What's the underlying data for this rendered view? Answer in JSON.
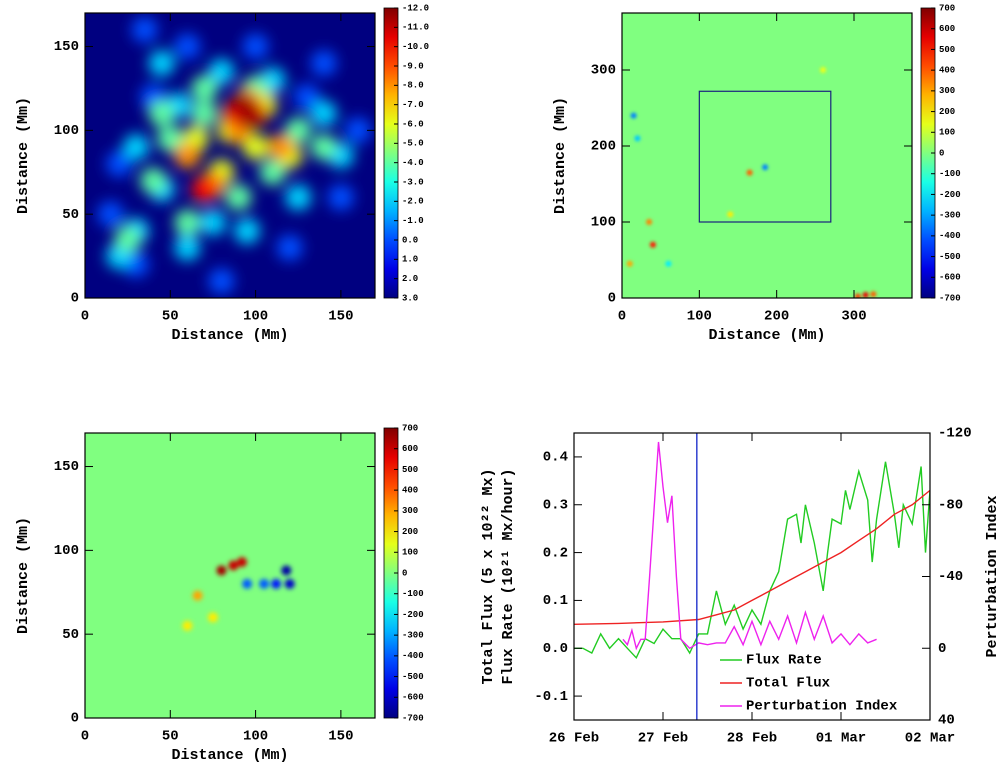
{
  "chart_data": [
    {
      "type": "heatmap",
      "xlabel": "Distance (Mm)",
      "ylabel": "Distance (Mm)",
      "xlim": [
        0,
        170
      ],
      "ylim": [
        0,
        170
      ],
      "xticks": [
        0,
        50,
        100,
        150
      ],
      "yticks": [
        0,
        50,
        100,
        150
      ],
      "colorbar": {
        "lim": [
          3,
          -12
        ],
        "ticks": [
          {
            "value": -12,
            "label": "-12.0"
          },
          {
            "value": -11,
            "label": "-11.0"
          },
          {
            "value": -10,
            "label": "-10.0"
          },
          {
            "value": -9,
            "label": "-9.0"
          },
          {
            "value": -8,
            "label": "-8.0"
          },
          {
            "value": -7,
            "label": "-7.0"
          },
          {
            "value": -6,
            "label": "-6.0"
          },
          {
            "value": -5,
            "label": "-5.0"
          },
          {
            "value": -4,
            "label": "-4.0"
          },
          {
            "value": -3,
            "label": "-3.0"
          },
          {
            "value": -2,
            "label": "-2.0"
          },
          {
            "value": -1,
            "label": "-1.0"
          },
          {
            "value": 0,
            "label": "0.0"
          },
          {
            "value": 1,
            "label": "1.0"
          },
          {
            "value": 2,
            "label": "2.0"
          },
          {
            "value": 3,
            "label": "3.0"
          }
        ]
      },
      "background": 3,
      "spots": [
        {
          "x": 30,
          "y": 20,
          "value": 0
        },
        {
          "x": 15,
          "y": 50,
          "value": 0
        },
        {
          "x": 40,
          "y": 120,
          "value": 0
        },
        {
          "x": 60,
          "y": 150,
          "value": 0
        },
        {
          "x": 100,
          "y": 150,
          "value": 0
        },
        {
          "x": 140,
          "y": 140,
          "value": 0
        },
        {
          "x": 150,
          "y": 60,
          "value": 0
        },
        {
          "x": 120,
          "y": 30,
          "value": 0
        },
        {
          "x": 80,
          "y": 10,
          "value": 0
        },
        {
          "x": 20,
          "y": 80,
          "value": 0
        },
        {
          "x": 35,
          "y": 160,
          "value": 0
        },
        {
          "x": 130,
          "y": 120,
          "value": 0
        },
        {
          "x": 160,
          "y": 100,
          "value": 0
        },
        {
          "x": 30,
          "y": 40,
          "value": -2
        },
        {
          "x": 45,
          "y": 65,
          "value": -2
        },
        {
          "x": 30,
          "y": 90,
          "value": -2
        },
        {
          "x": 55,
          "y": 115,
          "value": -2
        },
        {
          "x": 80,
          "y": 135,
          "value": -2
        },
        {
          "x": 110,
          "y": 130,
          "value": -2
        },
        {
          "x": 140,
          "y": 110,
          "value": -2
        },
        {
          "x": 150,
          "y": 85,
          "value": -2
        },
        {
          "x": 125,
          "y": 60,
          "value": -2
        },
        {
          "x": 95,
          "y": 40,
          "value": -2
        },
        {
          "x": 60,
          "y": 30,
          "value": -2
        },
        {
          "x": 75,
          "y": 45,
          "value": -2
        },
        {
          "x": 20,
          "y": 25,
          "value": -2
        },
        {
          "x": 45,
          "y": 140,
          "value": -2
        },
        {
          "x": 50,
          "y": 95,
          "value": -4
        },
        {
          "x": 70,
          "y": 110,
          "value": -4
        },
        {
          "x": 100,
          "y": 125,
          "value": -4
        },
        {
          "x": 125,
          "y": 100,
          "value": -4
        },
        {
          "x": 140,
          "y": 90,
          "value": -4
        },
        {
          "x": 40,
          "y": 70,
          "value": -4
        },
        {
          "x": 60,
          "y": 45,
          "value": -4
        },
        {
          "x": 90,
          "y": 60,
          "value": -4
        },
        {
          "x": 110,
          "y": 75,
          "value": -4
        },
        {
          "x": 25,
          "y": 35,
          "value": -4
        },
        {
          "x": 70,
          "y": 125,
          "value": -4
        },
        {
          "x": 45,
          "y": 110,
          "value": -4
        },
        {
          "x": 65,
          "y": 95,
          "value": -6
        },
        {
          "x": 85,
          "y": 100,
          "value": -6
        },
        {
          "x": 105,
          "y": 115,
          "value": -6
        },
        {
          "x": 120,
          "y": 85,
          "value": -6
        },
        {
          "x": 80,
          "y": 75,
          "value": -6
        },
        {
          "x": 100,
          "y": 90,
          "value": -6
        },
        {
          "x": 60,
          "y": 85,
          "value": -8
        },
        {
          "x": 75,
          "y": 68,
          "value": -8
        },
        {
          "x": 95,
          "y": 118,
          "value": -8
        },
        {
          "x": 90,
          "y": 100,
          "value": -8
        },
        {
          "x": 115,
          "y": 90,
          "value": -8
        },
        {
          "x": 70,
          "y": 65,
          "value": -10
        },
        {
          "x": 88,
          "y": 110,
          "value": -10
        },
        {
          "x": 100,
          "y": 110,
          "value": -10
        },
        {
          "x": 93,
          "y": 115,
          "value": -11.5
        },
        {
          "x": 97,
          "y": 108,
          "value": -11.5
        }
      ]
    },
    {
      "type": "heatmap",
      "xlabel": "Distance (Mm)",
      "ylabel": "Distance (Mm)",
      "xlim": [
        0,
        375
      ],
      "ylim": [
        0,
        375
      ],
      "xticks": [
        0,
        100,
        200,
        300
      ],
      "yticks": [
        0,
        100,
        200,
        300
      ],
      "colorbar": {
        "lim": [
          -700,
          700
        ],
        "ticks": [
          700,
          600,
          500,
          400,
          300,
          200,
          100,
          0,
          -100,
          -200,
          -300,
          -400,
          -500,
          -600,
          -700
        ]
      },
      "background": 0,
      "box": {
        "x": [
          100,
          270
        ],
        "y": [
          100,
          272
        ]
      },
      "spots": [
        {
          "x": 165,
          "y": 165,
          "value": 400
        },
        {
          "x": 185,
          "y": 172,
          "value": -350
        },
        {
          "x": 40,
          "y": 70,
          "value": 500
        },
        {
          "x": 10,
          "y": 45,
          "value": 300
        },
        {
          "x": 15,
          "y": 240,
          "value": -350
        },
        {
          "x": 20,
          "y": 210,
          "value": -250
        },
        {
          "x": 60,
          "y": 45,
          "value": -200
        },
        {
          "x": 315,
          "y": 4,
          "value": 550
        },
        {
          "x": 305,
          "y": 2,
          "value": 450
        },
        {
          "x": 325,
          "y": 5,
          "value": 400
        },
        {
          "x": 140,
          "y": 110,
          "value": 200
        },
        {
          "x": 260,
          "y": 300,
          "value": 150
        },
        {
          "x": 35,
          "y": 100,
          "value": 350
        }
      ]
    },
    {
      "type": "heatmap",
      "xlabel": "Distance (Mm)",
      "ylabel": "Distance (Mm)",
      "xlim": [
        0,
        170
      ],
      "ylim": [
        0,
        170
      ],
      "xticks": [
        0,
        50,
        100,
        150
      ],
      "yticks": [
        0,
        50,
        100,
        150
      ],
      "colorbar": {
        "lim": [
          -700,
          700
        ],
        "ticks": [
          700,
          600,
          500,
          400,
          300,
          200,
          100,
          0,
          -100,
          -200,
          -300,
          -400,
          -500,
          -600,
          -700
        ]
      },
      "background": 0,
      "spots": [
        {
          "x": 66,
          "y": 73,
          "value": 300
        },
        {
          "x": 75,
          "y": 60,
          "value": 200
        },
        {
          "x": 60,
          "y": 55,
          "value": 200
        },
        {
          "x": 95,
          "y": 80,
          "value": -400
        },
        {
          "x": 105,
          "y": 80,
          "value": -400
        },
        {
          "x": 112,
          "y": 80,
          "value": -500
        },
        {
          "x": 80,
          "y": 88,
          "value": 650
        },
        {
          "x": 87,
          "y": 91,
          "value": 600
        },
        {
          "x": 92,
          "y": 93,
          "value": 600
        },
        {
          "x": 118,
          "y": 88,
          "value": -650
        },
        {
          "x": 120,
          "y": 80,
          "value": -600
        }
      ]
    },
    {
      "type": "line",
      "ylabel": [
        "Total Flux (5 x 10²² Mx)",
        "Flux Rate (10²¹ Mx/hour)"
      ],
      "y2label": "Perturbation Index",
      "xlim": [
        0,
        4
      ],
      "ylim": [
        -0.15,
        0.45
      ],
      "y2lim": [
        40,
        -120
      ],
      "xticks": [
        {
          "value": 0,
          "label": "26 Feb"
        },
        {
          "value": 1,
          "label": "27 Feb"
        },
        {
          "value": 2,
          "label": "28 Feb"
        },
        {
          "value": 3,
          "label": "01 Mar"
        },
        {
          "value": 4,
          "label": "02 Mar"
        }
      ],
      "yticks": [
        -0.1,
        {
          "value": 0,
          "label": "0.0"
        },
        0.1,
        0.2,
        0.3,
        0.4
      ],
      "y2ticks": [
        -120,
        -80,
        -40,
        0,
        40
      ],
      "vline": 1.38,
      "vline_color": "#2233cc",
      "legend": "lower right",
      "series": [
        {
          "name": "Flux Rate",
          "color": "#22cc22",
          "x": [
            0,
            0.1,
            0.2,
            0.3,
            0.4,
            0.5,
            0.6,
            0.7,
            0.8,
            0.9,
            1.0,
            1.1,
            1.2,
            1.3,
            1.4,
            1.5,
            1.6,
            1.7,
            1.8,
            1.9,
            2.0,
            2.1,
            2.2,
            2.3,
            2.4,
            2.5,
            2.55,
            2.6,
            2.7,
            2.8,
            2.85,
            2.9,
            3.0,
            3.05,
            3.1,
            3.2,
            3.3,
            3.35,
            3.4,
            3.5,
            3.6,
            3.65,
            3.7,
            3.8,
            3.9,
            3.95,
            4.0
          ],
          "values": [
            0.0,
            0.0,
            -0.01,
            0.03,
            0.0,
            0.02,
            0.0,
            -0.02,
            0.02,
            0.01,
            0.04,
            0.02,
            0.02,
            -0.01,
            0.03,
            0.03,
            0.12,
            0.05,
            0.09,
            0.04,
            0.08,
            0.05,
            0.12,
            0.16,
            0.27,
            0.28,
            0.22,
            0.3,
            0.22,
            0.12,
            0.2,
            0.27,
            0.26,
            0.33,
            0.29,
            0.37,
            0.31,
            0.18,
            0.27,
            0.39,
            0.28,
            0.21,
            0.3,
            0.26,
            0.38,
            0.2,
            0.33
          ]
        },
        {
          "name": "Total Flux",
          "color": "#ee2222",
          "x": [
            0,
            0.5,
            1.0,
            1.4,
            1.6,
            1.8,
            2.0,
            2.2,
            2.4,
            2.6,
            2.8,
            3.0,
            3.2,
            3.4,
            3.6,
            3.8,
            4.0
          ],
          "values": [
            0.05,
            0.052,
            0.055,
            0.06,
            0.07,
            0.08,
            0.1,
            0.12,
            0.14,
            0.16,
            0.18,
            0.2,
            0.225,
            0.25,
            0.28,
            0.3,
            0.33
          ]
        },
        {
          "name": "Perturbation Index",
          "color": "#ee22ee",
          "axis": "y2",
          "x": [
            0.55,
            0.6,
            0.65,
            0.7,
            0.75,
            0.8,
            0.85,
            0.95,
            1.0,
            1.05,
            1.1,
            1.15,
            1.2,
            1.3,
            1.4,
            1.5,
            1.6,
            1.7,
            1.8,
            1.9,
            2.0,
            2.1,
            2.2,
            2.3,
            2.4,
            2.5,
            2.6,
            2.7,
            2.8,
            2.9,
            3.0,
            3.1,
            3.2,
            3.3,
            3.4
          ],
          "values": [
            -5,
            -2,
            -10,
            0,
            -5,
            -5,
            -40,
            -115,
            -90,
            -70,
            -85,
            -40,
            -5,
            0,
            -3,
            -2,
            -3,
            -3,
            -12,
            -2,
            -15,
            -2,
            -15,
            -5,
            -18,
            -3,
            -20,
            -5,
            -18,
            -3,
            -8,
            -2,
            -8,
            -3,
            -5
          ]
        }
      ]
    }
  ]
}
